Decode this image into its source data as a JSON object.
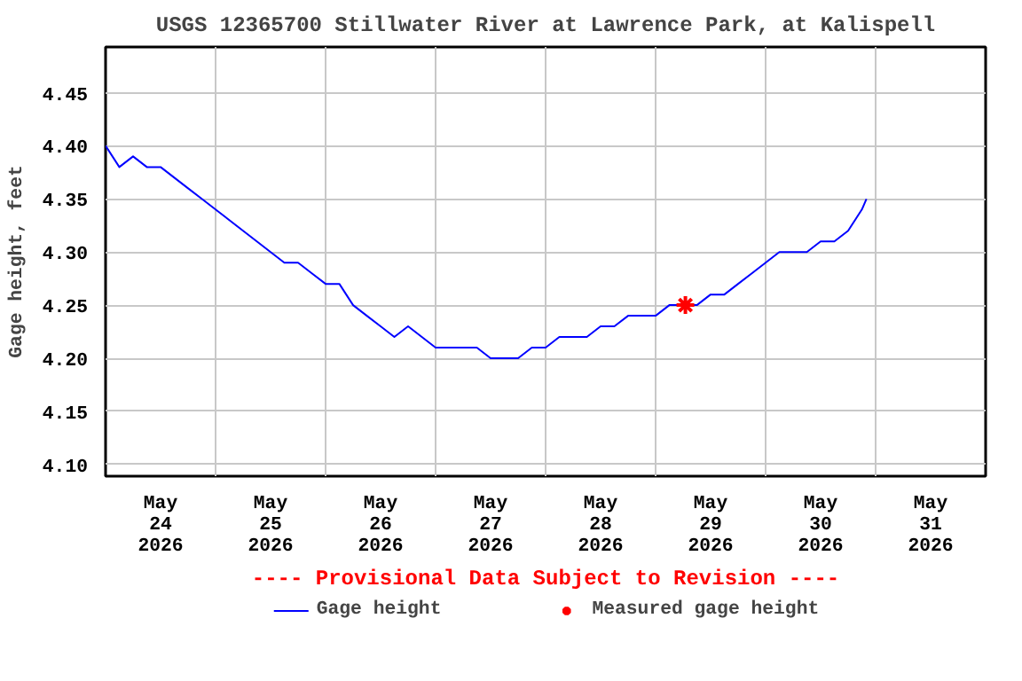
{
  "chart_data": {
    "type": "line",
    "title": "USGS 12365700 Stillwater River at Lawrence Park, at Kalispell",
    "ylabel": "Gage height, feet",
    "x": [
      "2026-05-24T00:00",
      "2026-05-24T03:00",
      "2026-05-24T06:00",
      "2026-05-24T09:00",
      "2026-05-24T12:00",
      "2026-05-24T15:00",
      "2026-05-24T18:00",
      "2026-05-24T21:00",
      "2026-05-25T00:00",
      "2026-05-25T03:00",
      "2026-05-25T06:00",
      "2026-05-25T09:00",
      "2026-05-25T12:00",
      "2026-05-25T15:00",
      "2026-05-25T18:00",
      "2026-05-25T21:00",
      "2026-05-26T00:00",
      "2026-05-26T03:00",
      "2026-05-26T06:00",
      "2026-05-26T09:00",
      "2026-05-26T12:00",
      "2026-05-26T15:00",
      "2026-05-26T18:00",
      "2026-05-26T21:00",
      "2026-05-27T00:00",
      "2026-05-27T03:00",
      "2026-05-27T06:00",
      "2026-05-27T09:00",
      "2026-05-27T12:00",
      "2026-05-27T15:00",
      "2026-05-27T18:00",
      "2026-05-27T21:00",
      "2026-05-28T00:00",
      "2026-05-28T03:00",
      "2026-05-28T06:00",
      "2026-05-28T09:00",
      "2026-05-28T12:00",
      "2026-05-28T15:00",
      "2026-05-28T18:00",
      "2026-05-28T21:00",
      "2026-05-29T00:00",
      "2026-05-29T03:00",
      "2026-05-29T06:00",
      "2026-05-29T09:00",
      "2026-05-29T12:00",
      "2026-05-29T15:00",
      "2026-05-29T18:00",
      "2026-05-29T21:00",
      "2026-05-30T00:00",
      "2026-05-30T03:00",
      "2026-05-30T06:00",
      "2026-05-30T09:00",
      "2026-05-30T12:00",
      "2026-05-30T15:00",
      "2026-05-30T18:00",
      "2026-05-30T21:00",
      "2026-05-30T22:00"
    ],
    "xlim": [
      "2026-05-24T00:00",
      "2026-06-01T00:00"
    ],
    "xticks": [
      {
        "value": "2026-05-24T00:00",
        "label": null
      },
      {
        "value": "2026-05-24T12:00",
        "label": "May\n24\n2026"
      },
      {
        "value": "2026-05-25T00:00",
        "label": null
      },
      {
        "value": "2026-05-25T12:00",
        "label": "May\n25\n2026"
      },
      {
        "value": "2026-05-26T00:00",
        "label": null
      },
      {
        "value": "2026-05-26T12:00",
        "label": "May\n26\n2026"
      },
      {
        "value": "2026-05-27T00:00",
        "label": null
      },
      {
        "value": "2026-05-27T12:00",
        "label": "May\n27\n2026"
      },
      {
        "value": "2026-05-28T00:00",
        "label": null
      },
      {
        "value": "2026-05-28T12:00",
        "label": "May\n28\n2026"
      },
      {
        "value": "2026-05-29T00:00",
        "label": null
      },
      {
        "value": "2026-05-29T12:00",
        "label": "May\n29\n2026"
      },
      {
        "value": "2026-05-30T00:00",
        "label": null
      },
      {
        "value": "2026-05-30T12:00",
        "label": "May\n30\n2026"
      },
      {
        "value": "2026-05-31T00:00",
        "label": null
      },
      {
        "value": "2026-05-31T12:00",
        "label": "May\n31\n2026"
      },
      {
        "value": "2026-06-01T00:00",
        "label": null
      }
    ],
    "ylim": [
      4.089,
      4.493
    ],
    "yticks": [
      {
        "value": 4.1,
        "label": "4.10"
      },
      {
        "value": 4.15,
        "label": "4.15"
      },
      {
        "value": 4.2,
        "label": "4.20"
      },
      {
        "value": 4.25,
        "label": "4.25"
      },
      {
        "value": 4.3,
        "label": "4.30"
      },
      {
        "value": 4.35,
        "label": "4.35"
      },
      {
        "value": 4.4,
        "label": "4.40"
      },
      {
        "value": 4.45,
        "label": "4.45"
      }
    ],
    "grid": true,
    "legend": "bottom",
    "annotations": [
      "---- Provisional Data Subject to Revision ----"
    ],
    "series": [
      {
        "name": "Gage height",
        "color": "#0000ff",
        "marker": "none",
        "values": [
          4.4,
          4.38,
          4.39,
          4.38,
          4.38,
          4.37,
          4.36,
          4.35,
          4.34,
          4.33,
          4.32,
          4.31,
          4.3,
          4.29,
          4.29,
          4.28,
          4.27,
          4.27,
          4.25,
          4.24,
          4.23,
          4.22,
          4.23,
          4.22,
          4.21,
          4.21,
          4.21,
          4.21,
          4.2,
          4.2,
          4.2,
          4.21,
          4.21,
          4.22,
          4.22,
          4.22,
          4.23,
          4.23,
          4.24,
          4.24,
          4.24,
          4.25,
          4.25,
          4.25,
          4.26,
          4.26,
          4.27,
          4.28,
          4.29,
          4.3,
          4.3,
          4.3,
          4.31,
          4.31,
          4.32,
          4.34,
          4.35
        ]
      },
      {
        "name": "Measured gage height",
        "type": "scatter",
        "color": "#ff0000",
        "marker": "cross",
        "x": [
          "2026-05-29T06:30"
        ],
        "values": [
          4.25
        ]
      }
    ]
  }
}
